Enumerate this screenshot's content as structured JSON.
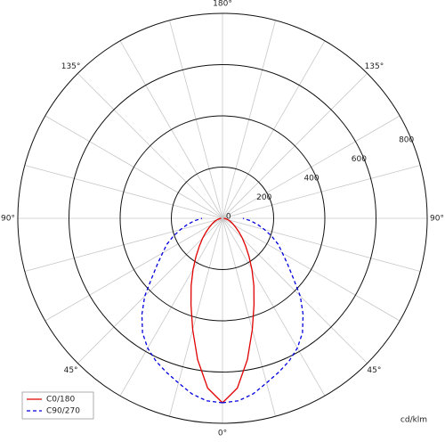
{
  "chart_data": {
    "type": "polar",
    "unit_label": "cd/klm",
    "rlim": [
      0,
      800
    ],
    "rticks": [
      0,
      200,
      400,
      600,
      800
    ],
    "angle_ticks": [
      {
        "value": 0,
        "label": "0°"
      },
      {
        "value": 45,
        "label": "45°"
      },
      {
        "value": 90,
        "label": "90°"
      },
      {
        "value": 135,
        "label": "135°"
      },
      {
        "value": 180,
        "label": "180°"
      },
      {
        "value": 225,
        "label": "135°"
      },
      {
        "value": 270,
        "label": "90°"
      },
      {
        "value": 315,
        "label": "45°"
      }
    ],
    "grid": true,
    "legend": "lower left",
    "angles": [
      0,
      5,
      10,
      15,
      20,
      25,
      30,
      35,
      40,
      45,
      50,
      55,
      60,
      65,
      70,
      75,
      80,
      85,
      90
    ],
    "series": [
      {
        "name": "C0/180",
        "color": "#e00000",
        "dashed": false,
        "values": [
          720,
          665,
          560,
          450,
          360,
          290,
          230,
          180,
          140,
          110,
          85,
          65,
          50,
          40,
          30,
          22,
          15,
          10,
          5
        ]
      },
      {
        "name": "C90/270",
        "color": "#0000dd",
        "dashed": true,
        "values": [
          720,
          715,
          695,
          665,
          640,
          615,
          585,
          545,
          490,
          430,
          360,
          310,
          270,
          240,
          205,
          170,
          140,
          110,
          80
        ]
      }
    ]
  }
}
